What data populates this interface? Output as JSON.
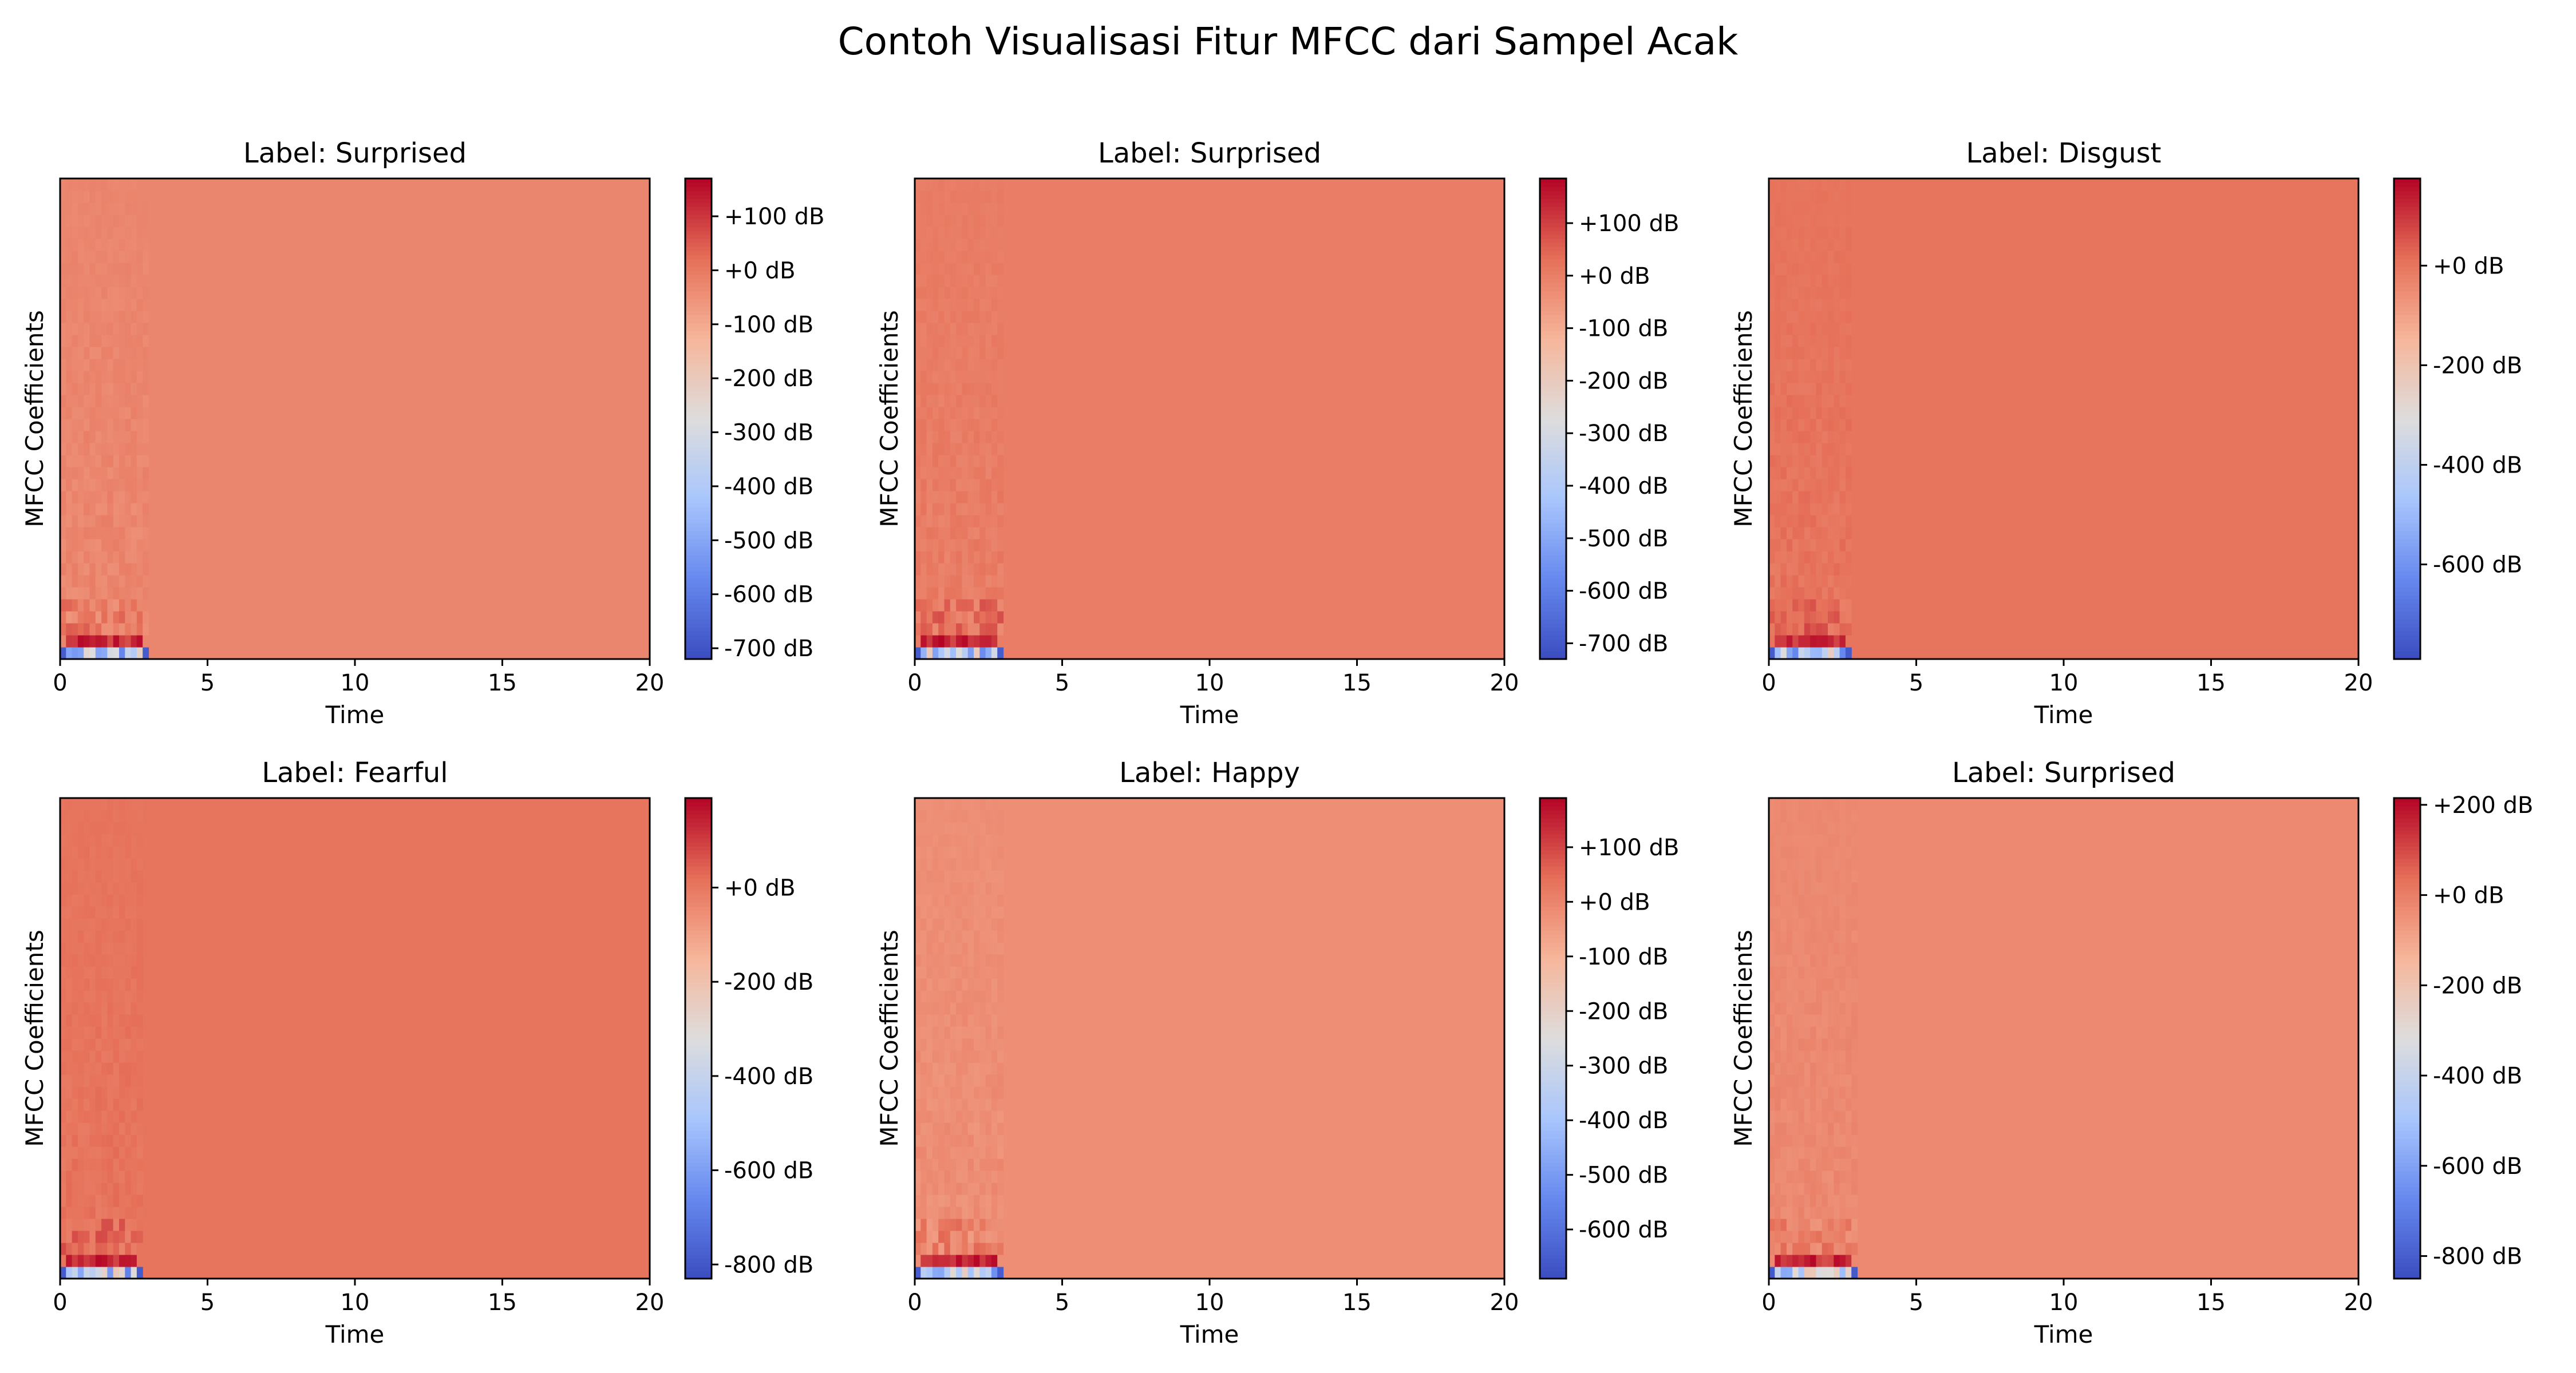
{
  "figure_title": "Contoh Visualisasi Fitur MFCC dari Sampel Acak",
  "colormap": [
    "#3b4cc0",
    "#6688ee",
    "#a9c6fd",
    "#dddddd",
    "#f6b69b",
    "#e67059",
    "#b40426"
  ],
  "chart_data": [
    {
      "type": "heatmap",
      "title": "Label: Surprised",
      "xlabel": "Time",
      "ylabel": "MFCC Coefficients",
      "xlim": [
        0,
        20
      ],
      "xticks": [
        "0",
        "5",
        "10",
        "15",
        "20"
      ],
      "active_until": 3.0,
      "background_value": -25,
      "colorbar": {
        "vmin": -720,
        "vmax": 170,
        "tick_values": [
          100,
          0,
          -100,
          -200,
          -300,
          -400,
          -500,
          -600,
          -700
        ],
        "tick_labels": [
          "+100 dB",
          "+0 dB",
          "-100 dB",
          "-200 dB",
          "-300 dB",
          "-400 dB",
          "-500 dB",
          "-600 dB",
          "-700 dB"
        ]
      }
    },
    {
      "type": "heatmap",
      "title": "Label: Surprised",
      "xlabel": "Time",
      "ylabel": "MFCC Coefficients",
      "xlim": [
        0,
        20
      ],
      "xticks": [
        "0",
        "5",
        "10",
        "15",
        "20"
      ],
      "active_until": 3.0,
      "background_value": 5,
      "colorbar": {
        "vmin": -730,
        "vmax": 185,
        "tick_values": [
          100,
          0,
          -100,
          -200,
          -300,
          -400,
          -500,
          -600,
          -700
        ],
        "tick_labels": [
          "+100 dB",
          "+0 dB",
          "-100 dB",
          "-200 dB",
          "-300 dB",
          "-400 dB",
          "-500 dB",
          "-600 dB",
          "-700 dB"
        ]
      }
    },
    {
      "type": "heatmap",
      "title": "Label: Disgust",
      "xlabel": "Time",
      "ylabel": "MFCC Coefficients",
      "xlim": [
        0,
        20
      ],
      "xticks": [
        "0",
        "5",
        "10",
        "15",
        "20"
      ],
      "active_until": 2.7,
      "background_value": 5,
      "colorbar": {
        "vmin": -790,
        "vmax": 175,
        "tick_values": [
          0,
          -200,
          -400,
          -600
        ],
        "tick_labels": [
          "+0 dB",
          "-200 dB",
          "-400 dB",
          "-600 dB"
        ]
      }
    },
    {
      "type": "heatmap",
      "title": "Label: Fearful",
      "xlabel": "Time",
      "ylabel": "MFCC Coefficients",
      "xlim": [
        0,
        20
      ],
      "xticks": [
        "0",
        "5",
        "10",
        "15",
        "20"
      ],
      "active_until": 2.7,
      "background_value": 10,
      "colorbar": {
        "vmin": -830,
        "vmax": 190,
        "tick_values": [
          0,
          -200,
          -400,
          -600,
          -800
        ],
        "tick_labels": [
          "+0 dB",
          "-200 dB",
          "-400 dB",
          "-600 dB",
          "-800 dB"
        ]
      }
    },
    {
      "type": "heatmap",
      "title": "Label: Happy",
      "xlabel": "Time",
      "ylabel": "MFCC Coefficients",
      "xlim": [
        0,
        20
      ],
      "xticks": [
        "0",
        "5",
        "10",
        "15",
        "20"
      ],
      "active_until": 3.0,
      "background_value": -20,
      "colorbar": {
        "vmin": -690,
        "vmax": 190,
        "tick_values": [
          100,
          0,
          -100,
          -200,
          -300,
          -400,
          -500,
          -600
        ],
        "tick_labels": [
          "+100 dB",
          "+0 dB",
          "-100 dB",
          "-200 dB",
          "-300 dB",
          "-400 dB",
          "-500 dB",
          "-600 dB"
        ]
      }
    },
    {
      "type": "heatmap",
      "title": "Label: Surprised",
      "xlabel": "Time",
      "ylabel": "MFCC Coefficients",
      "xlim": [
        0,
        20
      ],
      "xticks": [
        "0",
        "5",
        "10",
        "15",
        "20"
      ],
      "active_until": 3.0,
      "background_value": -25,
      "colorbar": {
        "vmin": -850,
        "vmax": 215,
        "tick_values": [
          200,
          0,
          -200,
          -400,
          -600,
          -800
        ],
        "tick_labels": [
          "+200 dB",
          "+0 dB",
          "-200 dB",
          "-400 dB",
          "-600 dB",
          "-800 dB"
        ]
      }
    }
  ]
}
